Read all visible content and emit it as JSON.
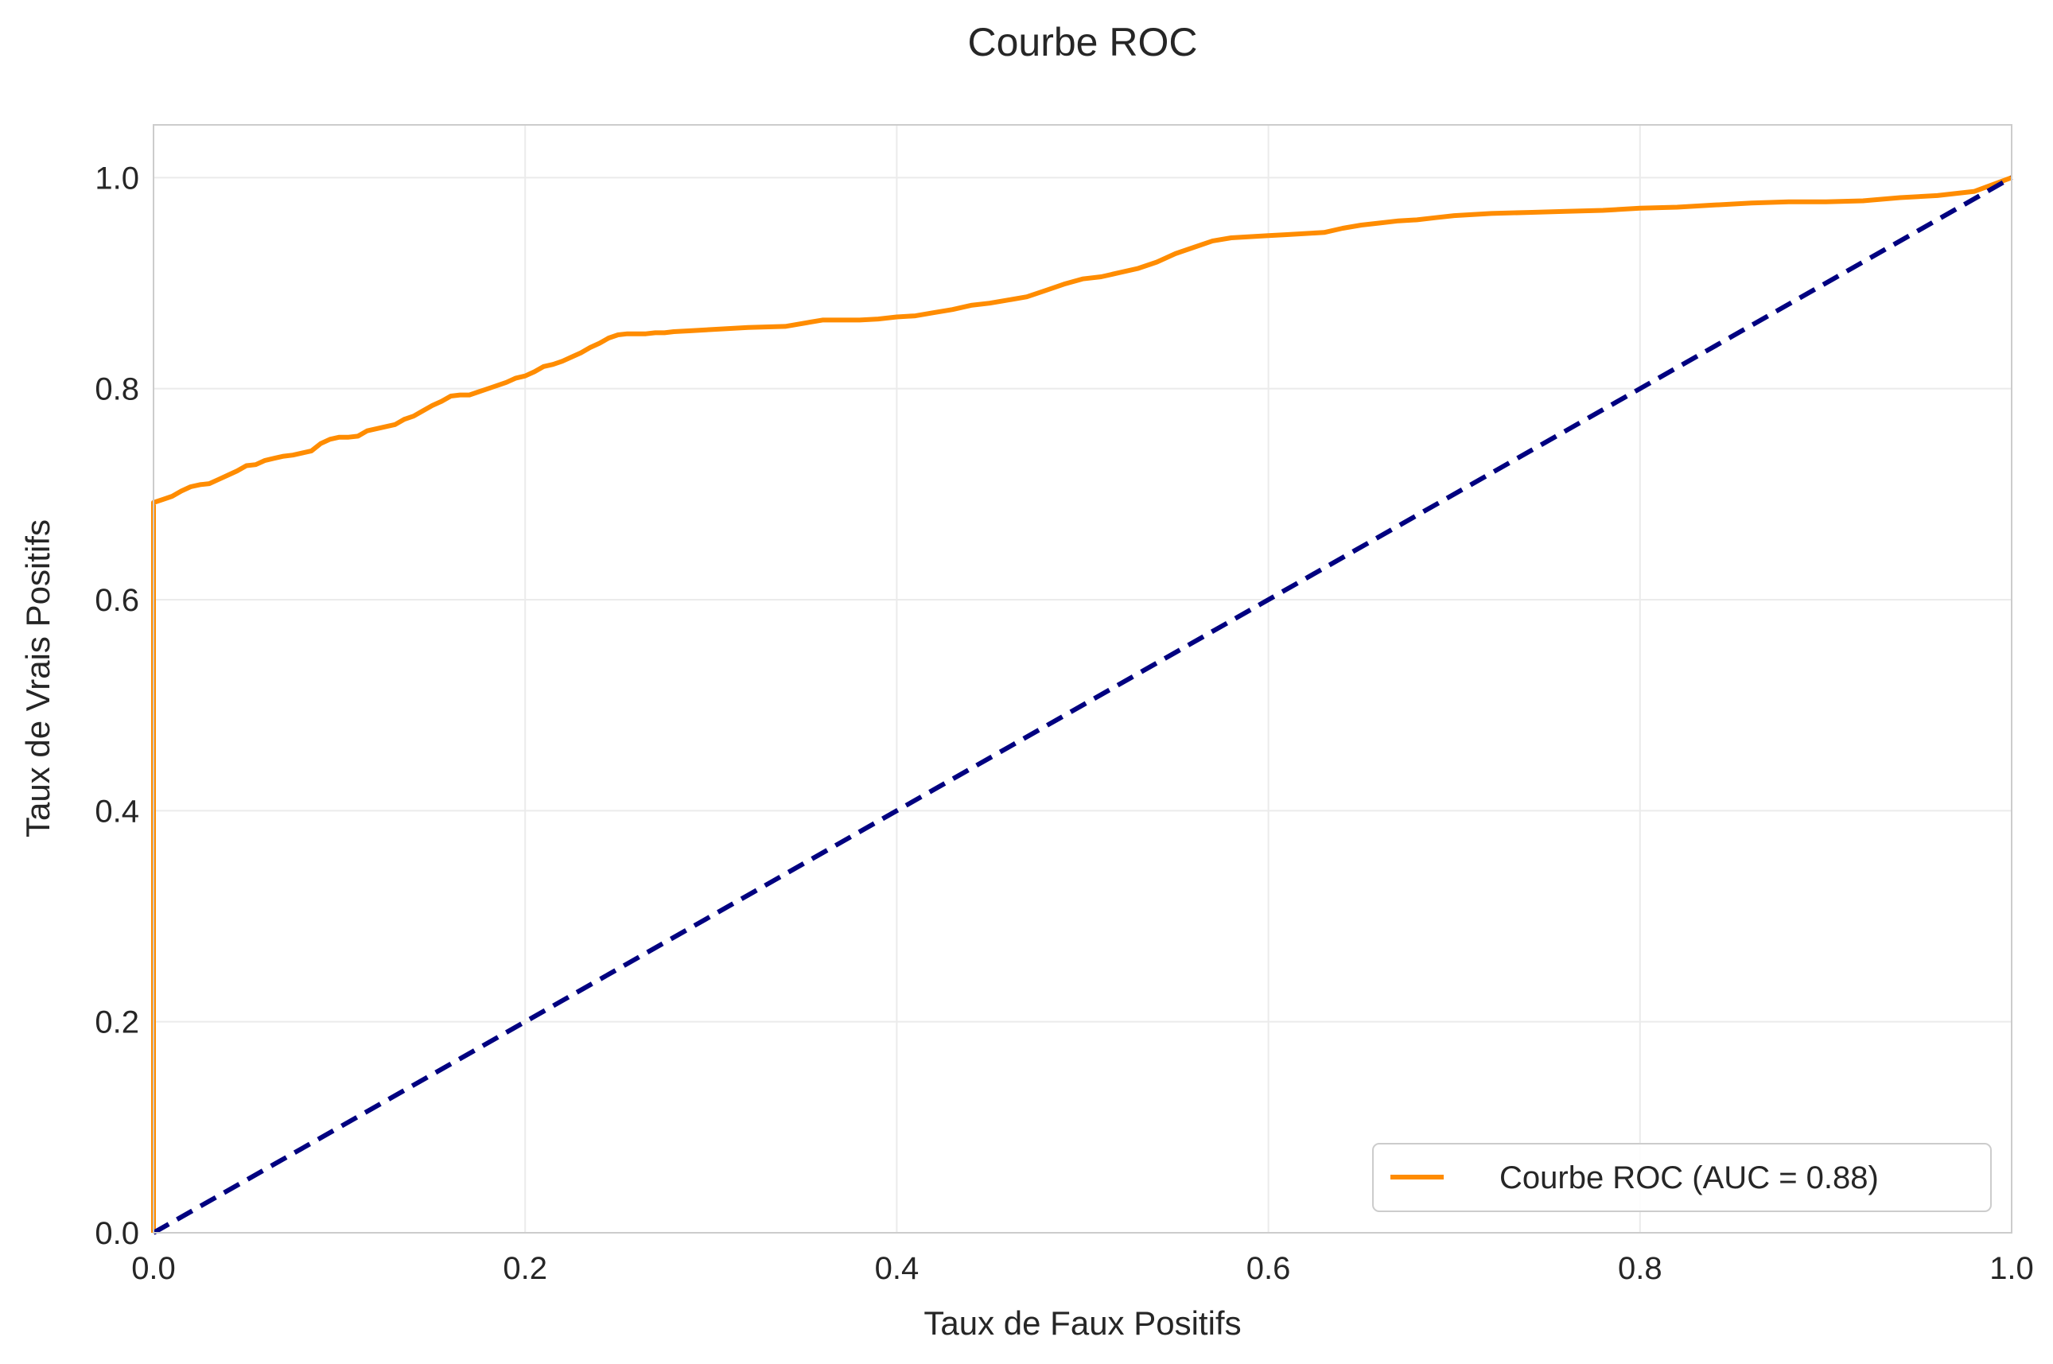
{
  "chart_data": {
    "type": "line",
    "title": "Courbe ROC",
    "xlabel": "Taux de Faux Positifs",
    "ylabel": "Taux de Vrais Positifs",
    "xlim": [
      0.0,
      1.0
    ],
    "ylim": [
      0.0,
      1.05
    ],
    "xticks": [
      "0.0",
      "0.2",
      "0.4",
      "0.6",
      "0.8",
      "1.0"
    ],
    "yticks": [
      "0.0",
      "0.2",
      "0.4",
      "0.6",
      "0.8",
      "1.0"
    ],
    "grid": true,
    "legend_position": "lower right",
    "series": [
      {
        "name": "Courbe ROC (AUC = 0.88)",
        "color": "#ff8c00",
        "style": "solid",
        "x": [
          0.0,
          0.0,
          0.005,
          0.01,
          0.015,
          0.02,
          0.025,
          0.03,
          0.035,
          0.04,
          0.045,
          0.05,
          0.055,
          0.06,
          0.065,
          0.07,
          0.075,
          0.08,
          0.085,
          0.09,
          0.095,
          0.1,
          0.105,
          0.11,
          0.115,
          0.12,
          0.125,
          0.13,
          0.135,
          0.14,
          0.145,
          0.15,
          0.155,
          0.16,
          0.165,
          0.17,
          0.175,
          0.18,
          0.185,
          0.19,
          0.195,
          0.2,
          0.205,
          0.21,
          0.215,
          0.22,
          0.225,
          0.23,
          0.235,
          0.24,
          0.245,
          0.25,
          0.255,
          0.26,
          0.265,
          0.27,
          0.275,
          0.28,
          0.29,
          0.3,
          0.32,
          0.34,
          0.36,
          0.37,
          0.38,
          0.39,
          0.4,
          0.41,
          0.42,
          0.43,
          0.44,
          0.45,
          0.46,
          0.47,
          0.48,
          0.49,
          0.5,
          0.51,
          0.52,
          0.53,
          0.54,
          0.55,
          0.56,
          0.57,
          0.58,
          0.59,
          0.6,
          0.61,
          0.62,
          0.63,
          0.64,
          0.65,
          0.66,
          0.67,
          0.68,
          0.69,
          0.7,
          0.72,
          0.74,
          0.76,
          0.78,
          0.8,
          0.82,
          0.84,
          0.86,
          0.88,
          0.9,
          0.92,
          0.94,
          0.96,
          0.98,
          1.0
        ],
        "y": [
          0.0,
          0.692,
          0.695,
          0.698,
          0.703,
          0.707,
          0.709,
          0.71,
          0.714,
          0.718,
          0.722,
          0.727,
          0.728,
          0.732,
          0.734,
          0.736,
          0.737,
          0.739,
          0.741,
          0.748,
          0.752,
          0.754,
          0.754,
          0.755,
          0.76,
          0.762,
          0.764,
          0.766,
          0.771,
          0.774,
          0.779,
          0.784,
          0.788,
          0.793,
          0.794,
          0.794,
          0.797,
          0.8,
          0.803,
          0.806,
          0.81,
          0.812,
          0.816,
          0.821,
          0.823,
          0.826,
          0.83,
          0.834,
          0.839,
          0.843,
          0.848,
          0.851,
          0.852,
          0.852,
          0.852,
          0.853,
          0.853,
          0.854,
          0.855,
          0.856,
          0.858,
          0.859,
          0.865,
          0.865,
          0.865,
          0.866,
          0.868,
          0.869,
          0.872,
          0.875,
          0.879,
          0.881,
          0.884,
          0.887,
          0.893,
          0.899,
          0.904,
          0.906,
          0.91,
          0.914,
          0.92,
          0.928,
          0.934,
          0.94,
          0.943,
          0.944,
          0.945,
          0.946,
          0.947,
          0.948,
          0.952,
          0.955,
          0.957,
          0.959,
          0.96,
          0.962,
          0.964,
          0.966,
          0.967,
          0.968,
          0.969,
          0.971,
          0.972,
          0.974,
          0.976,
          0.977,
          0.977,
          0.978,
          0.981,
          0.983,
          0.987,
          1.0
        ]
      },
      {
        "name": "",
        "color": "#000080",
        "style": "dashed",
        "x": [
          0.0,
          1.0
        ],
        "y": [
          0.0,
          1.0
        ]
      }
    ]
  }
}
